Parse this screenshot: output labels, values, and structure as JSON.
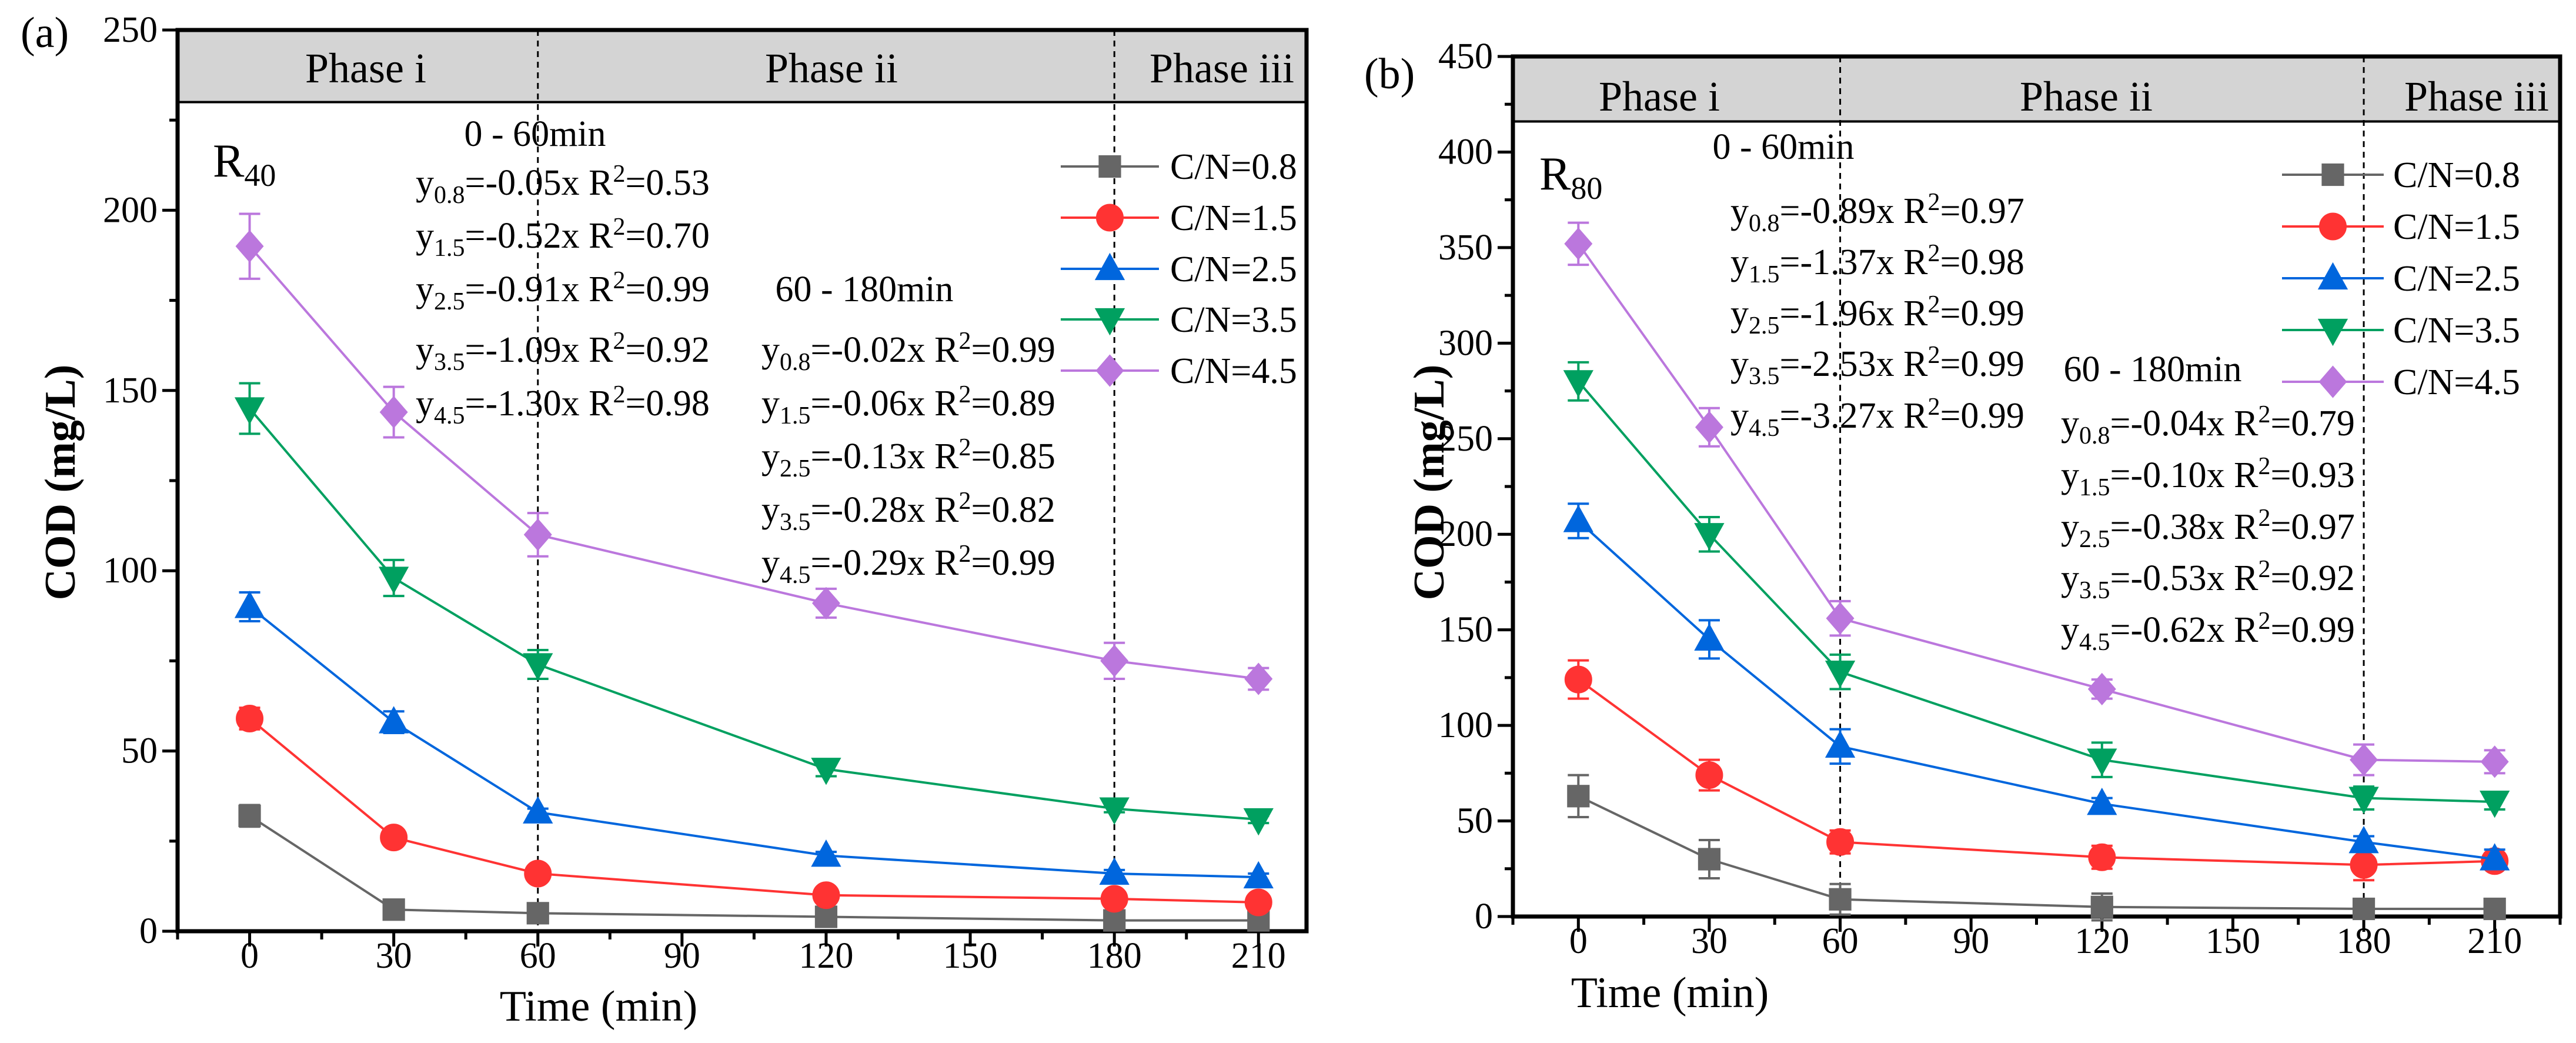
{
  "chart_data": [
    {
      "type": "line",
      "panel_label": "(a)",
      "reactor": {
        "main": "R",
        "sub": "40"
      },
      "xlabel": "Time (min)",
      "ylabel": "COD (mg/L)",
      "xlim": [
        -15,
        220
      ],
      "ylim": [
        0,
        250
      ],
      "xticks": [
        0,
        30,
        60,
        90,
        120,
        150,
        180,
        210
      ],
      "yticks": [
        0,
        50,
        100,
        150,
        200,
        250
      ],
      "phase_band_from": 230,
      "phase_boundaries": [
        60,
        180
      ],
      "phases": [
        "Phase i",
        "Phase ii",
        "Phase iii"
      ],
      "legend_position": "top-right",
      "x": [
        0,
        30,
        60,
        120,
        180,
        210
      ],
      "series": [
        {
          "name": "C/N=0.8",
          "color": "#666666",
          "marker": "square",
          "values": [
            32,
            6,
            5,
            4,
            3,
            3
          ],
          "errors": [
            3,
            1,
            1,
            1,
            1,
            1
          ]
        },
        {
          "name": "C/N=1.5",
          "color": "#ff3333",
          "marker": "circle",
          "values": [
            59,
            26,
            16,
            10,
            9,
            8
          ],
          "errors": [
            3,
            1,
            1,
            1,
            1,
            1
          ]
        },
        {
          "name": "C/N=2.5",
          "color": "#0066dd",
          "marker": "triangle-up",
          "values": [
            90,
            58,
            33,
            21,
            16,
            15
          ],
          "errors": [
            4,
            3,
            1,
            1,
            1,
            1
          ]
        },
        {
          "name": "C/N=3.5",
          "color": "#00a060",
          "marker": "triangle-down",
          "values": [
            145,
            98,
            74,
            45,
            34,
            31
          ],
          "errors": [
            7,
            5,
            4,
            2,
            1,
            1
          ]
        },
        {
          "name": "C/N=4.5",
          "color": "#bb77dd",
          "marker": "diamond",
          "values": [
            190,
            144,
            110,
            91,
            75,
            70
          ],
          "errors": [
            9,
            7,
            6,
            4,
            5,
            3
          ]
        }
      ],
      "fits": [
        {
          "title": "0 - 60min",
          "equations": [
            {
              "y": "y",
              "sub": "0.8",
              "mid": "=-0.05x  R",
              "sup": "2",
              "end": "=0.53"
            },
            {
              "y": "y",
              "sub": "1.5",
              "mid": "=-0.52x  R",
              "sup": "2",
              "end": "=0.70"
            },
            {
              "y": "y",
              "sub": "2.5",
              "mid": "=-0.91x  R",
              "sup": "2",
              "end": "=0.99"
            },
            {
              "y": "y",
              "sub": "3.5",
              "mid": "=-1.09x  R",
              "sup": "2",
              "end": "=0.92"
            },
            {
              "y": "y",
              "sub": "4.5",
              "mid": "=-1.30x  R",
              "sup": "2",
              "end": "=0.98"
            }
          ]
        },
        {
          "title": "60 - 180min",
          "equations": [
            {
              "y": "y",
              "sub": "0.8",
              "mid": "=-0.02x  R",
              "sup": "2",
              "end": "=0.99"
            },
            {
              "y": "y",
              "sub": "1.5",
              "mid": "=-0.06x  R",
              "sup": "2",
              "end": "=0.89"
            },
            {
              "y": "y",
              "sub": "2.5",
              "mid": "=-0.13x  R",
              "sup": "2",
              "end": "=0.85"
            },
            {
              "y": "y",
              "sub": "3.5",
              "mid": "=-0.28x  R",
              "sup": "2",
              "end": "=0.82"
            },
            {
              "y": "y",
              "sub": "4.5",
              "mid": "=-0.29x  R",
              "sup": "2",
              "end": "=0.99"
            }
          ]
        }
      ]
    },
    {
      "type": "line",
      "panel_label": "(b)",
      "reactor": {
        "main": "R",
        "sub": "80"
      },
      "xlabel": "Time (min)",
      "ylabel": "COD (mg/L)",
      "xlim": [
        -15,
        225
      ],
      "ylim": [
        0,
        450
      ],
      "xticks": [
        0,
        30,
        60,
        90,
        120,
        150,
        180,
        210
      ],
      "yticks": [
        0,
        50,
        100,
        150,
        200,
        250,
        300,
        350,
        400,
        450
      ],
      "phase_band_from": 416,
      "phase_boundaries": [
        60,
        180
      ],
      "phases": [
        "Phase i",
        "Phase ii",
        "Phase iii"
      ],
      "legend_position": "top-right",
      "x": [
        0,
        30,
        60,
        120,
        180,
        210
      ],
      "series": [
        {
          "name": "C/N=0.8",
          "color": "#666666",
          "marker": "square",
          "values": [
            63,
            30,
            9,
            5,
            4,
            4
          ],
          "errors": [
            11,
            10,
            8,
            7,
            2,
            2
          ]
        },
        {
          "name": "C/N=1.5",
          "color": "#ff3333",
          "marker": "circle",
          "values": [
            124,
            74,
            39,
            31,
            27,
            29
          ],
          "errors": [
            10,
            8,
            6,
            6,
            8,
            4
          ]
        },
        {
          "name": "C/N=2.5",
          "color": "#0066dd",
          "marker": "triangle-up",
          "values": [
            207,
            145,
            89,
            59,
            39,
            30
          ],
          "errors": [
            9,
            10,
            9,
            3,
            3,
            5
          ]
        },
        {
          "name": "C/N=3.5",
          "color": "#00a060",
          "marker": "triangle-down",
          "values": [
            280,
            200,
            128,
            82,
            62,
            60
          ],
          "errors": [
            10,
            9,
            9,
            9,
            6,
            4
          ]
        },
        {
          "name": "C/N=4.5",
          "color": "#bb77dd",
          "marker": "diamond",
          "values": [
            352,
            256,
            156,
            119,
            82,
            81
          ],
          "errors": [
            11,
            10,
            9,
            5,
            8,
            6
          ]
        }
      ],
      "fits": [
        {
          "title": "0 - 60min",
          "equations": [
            {
              "y": "y",
              "sub": "0.8",
              "mid": "=-0.89x  R",
              "sup": "2",
              "end": "=0.97"
            },
            {
              "y": "y",
              "sub": "1.5",
              "mid": "=-1.37x  R",
              "sup": "2",
              "end": "=0.98"
            },
            {
              "y": "y",
              "sub": "2.5",
              "mid": "=-1.96x  R",
              "sup": "2",
              "end": "=0.99"
            },
            {
              "y": "y",
              "sub": "3.5",
              "mid": "=-2.53x  R",
              "sup": "2",
              "end": "=0.99"
            },
            {
              "y": "y",
              "sub": "4.5",
              "mid": "=-3.27x  R",
              "sup": "2",
              "end": "=0.99"
            }
          ]
        },
        {
          "title": "60 - 180min",
          "equations": [
            {
              "y": "y",
              "sub": "0.8",
              "mid": "=-0.04x  R",
              "sup": "2",
              "end": "=0.79"
            },
            {
              "y": "y",
              "sub": "1.5",
              "mid": "=-0.10x  R",
              "sup": "2",
              "end": "=0.93"
            },
            {
              "y": "y",
              "sub": "2.5",
              "mid": "=-0.38x  R",
              "sup": "2",
              "end": "=0.97"
            },
            {
              "y": "y",
              "sub": "3.5",
              "mid": "=-0.53x  R",
              "sup": "2",
              "end": "=0.92"
            },
            {
              "y": "y",
              "sub": "4.5",
              "mid": "=-0.62x  R",
              "sup": "2",
              "end": "=0.99"
            }
          ]
        }
      ]
    }
  ]
}
